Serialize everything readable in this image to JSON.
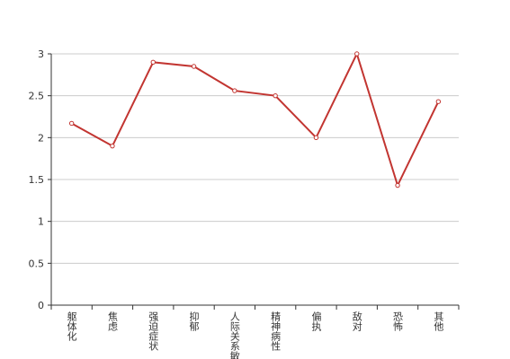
{
  "chart_data": {
    "type": "line",
    "categories": [
      "躯体化",
      "焦虑",
      "强迫症状",
      "抑郁",
      "人际关系敏感",
      "精神病性",
      "偏执",
      "敌对",
      "恐怖",
      "其他"
    ],
    "series": [
      {
        "color": "#c23531",
        "values": [
          2.17,
          1.9,
          2.9,
          2.85,
          2.56,
          2.5,
          2.0,
          3.0,
          1.43,
          2.43
        ]
      }
    ],
    "ylim": [
      0,
      3
    ],
    "yticks": [
      0,
      0.5,
      1,
      1.5,
      2,
      2.5,
      3
    ],
    "grid": true
  }
}
